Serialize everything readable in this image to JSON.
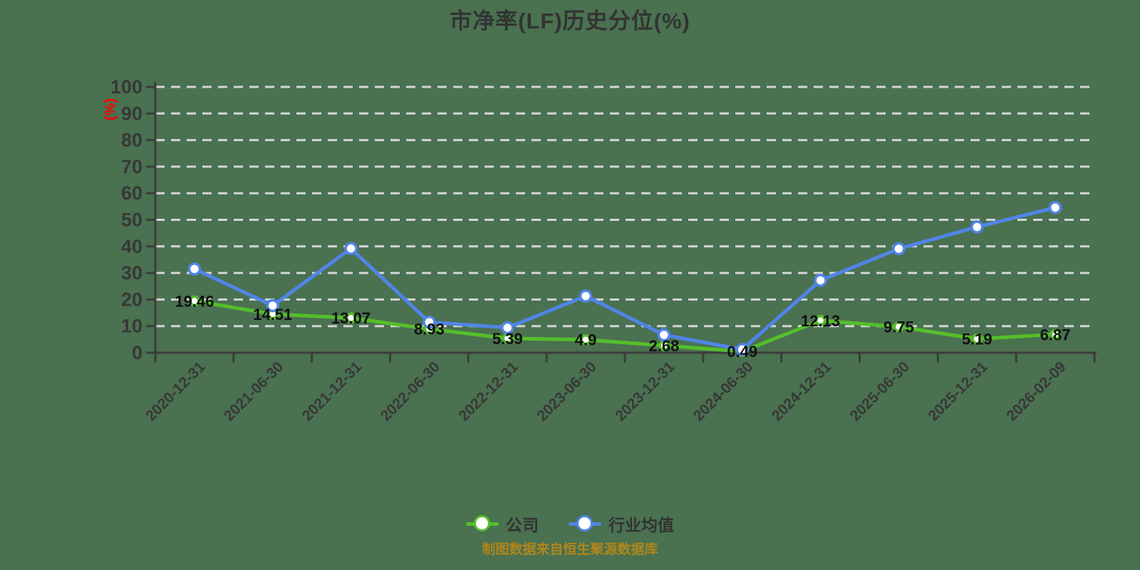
{
  "title": "市净率(LF)历史分位(%)",
  "y_axis_unit": "(%)",
  "caption": "制图数据来自恒生聚源数据库",
  "legend": [
    {
      "label": "公司",
      "color": "#55BE2B"
    },
    {
      "label": "行业均值",
      "color": "#5085E6"
    }
  ],
  "colors": {
    "background": "#4A7150",
    "company_line": "#55BE2B",
    "industry_line": "#5085E6",
    "axis": "#3C3C3C",
    "gridline": "#D5D5D5",
    "tick_label": "#383838",
    "value_label": "#111111",
    "unit_label": "#FF0000",
    "caption": "#AF861B"
  },
  "chart_data": {
    "type": "line",
    "title": "市净率(LF)历史分位(%)",
    "xlabel": "",
    "ylabel": "(%)",
    "ylim": [
      0,
      100
    ],
    "ytick_step": 10,
    "grid": "horizontal-dashed",
    "legend_position": "bottom",
    "categories": [
      "2020-12-31",
      "2021-06-30",
      "2021-12-31",
      "2022-06-30",
      "2022-12-31",
      "2023-06-30",
      "2023-12-31",
      "2024-06-30",
      "2024-12-31",
      "2025-06-30",
      "2025-12-31",
      "2026-02-09"
    ],
    "series": [
      {
        "name": "公司",
        "color": "#55BE2B",
        "marker": "circle-white-fill",
        "show_value_labels": true,
        "values": [
          19.46,
          14.51,
          13.07,
          8.93,
          5.39,
          4.9,
          2.68,
          0.49,
          12.13,
          9.75,
          5.19,
          6.87
        ]
      },
      {
        "name": "行业均值",
        "color": "#5085E6",
        "marker": "circle-white-fill",
        "show_value_labels": false,
        "values": [
          31.5,
          17.7,
          39.2,
          11.5,
          9.4,
          21.3,
          6.7,
          1.2,
          27.2,
          39.1,
          47.3,
          54.6
        ]
      }
    ]
  }
}
